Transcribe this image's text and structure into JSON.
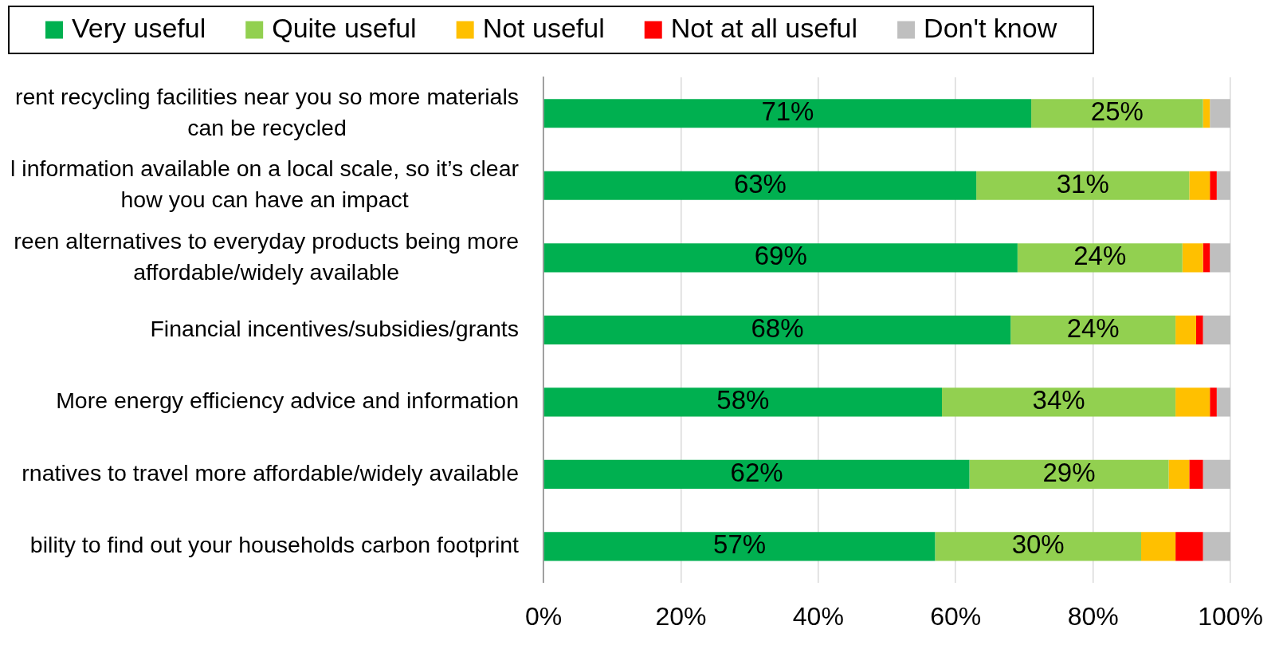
{
  "chart_data": {
    "type": "bar",
    "orientation": "horizontal",
    "stacked": true,
    "categories": [
      "rent recycling facilities near you so more materials can be recycled",
      "l information available on a local scale, so it’s clear how you can have an impact",
      "reen alternatives to everyday products being more affordable/widely available",
      "Financial incentives/subsidies/grants",
      "More energy efficiency advice and information",
      "rnatives to travel more affordable/widely available",
      "bility to find out your households carbon footprint"
    ],
    "series": [
      {
        "name": "Very useful",
        "color": "#00b050",
        "values": [
          71,
          63,
          69,
          68,
          58,
          62,
          57
        ],
        "value_labels": [
          "71%",
          "63%",
          "69%",
          "68%",
          "58%",
          "62%",
          "57%"
        ]
      },
      {
        "name": "Quite useful",
        "color": "#92d050",
        "values": [
          25,
          31,
          24,
          24,
          34,
          29,
          30
        ],
        "value_labels": [
          "25%",
          "31%",
          "24%",
          "24%",
          "34%",
          "29%",
          "30%"
        ]
      },
      {
        "name": "Not useful",
        "color": "#ffc000",
        "values": [
          1,
          3,
          3,
          3,
          5,
          3,
          5
        ]
      },
      {
        "name": "Not at all useful",
        "color": "#ff0000",
        "values": [
          0,
          1,
          1,
          1,
          1,
          2,
          4
        ]
      },
      {
        "name": "Don't know",
        "color": "#bfbfbf",
        "values": [
          3,
          2,
          3,
          4,
          2,
          4,
          4
        ]
      }
    ],
    "xlim": [
      0,
      100
    ],
    "xticks": [
      {
        "value": 0,
        "label": "0%"
      },
      {
        "value": 20,
        "label": "20%"
      },
      {
        "value": 40,
        "label": "40%"
      },
      {
        "value": 60,
        "label": "60%"
      },
      {
        "value": 80,
        "label": "80%"
      },
      {
        "value": 100,
        "label": "100%"
      }
    ],
    "grid": "x",
    "legend": "top left"
  }
}
